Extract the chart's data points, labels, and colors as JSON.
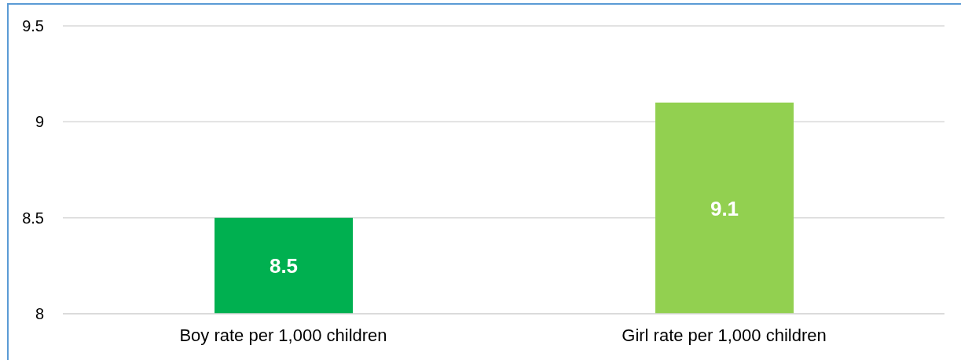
{
  "chart_data": {
    "type": "bar",
    "categories": [
      "Boy rate per 1,000 children",
      "Girl rate per 1,000 children"
    ],
    "values": [
      8.5,
      9.1
    ],
    "colors": [
      "#00b050",
      "#92d050"
    ],
    "ylim": [
      8,
      9.5
    ],
    "yticks": [
      8,
      8.5,
      9,
      9.5
    ],
    "grid": "y",
    "data_labels": true
  }
}
